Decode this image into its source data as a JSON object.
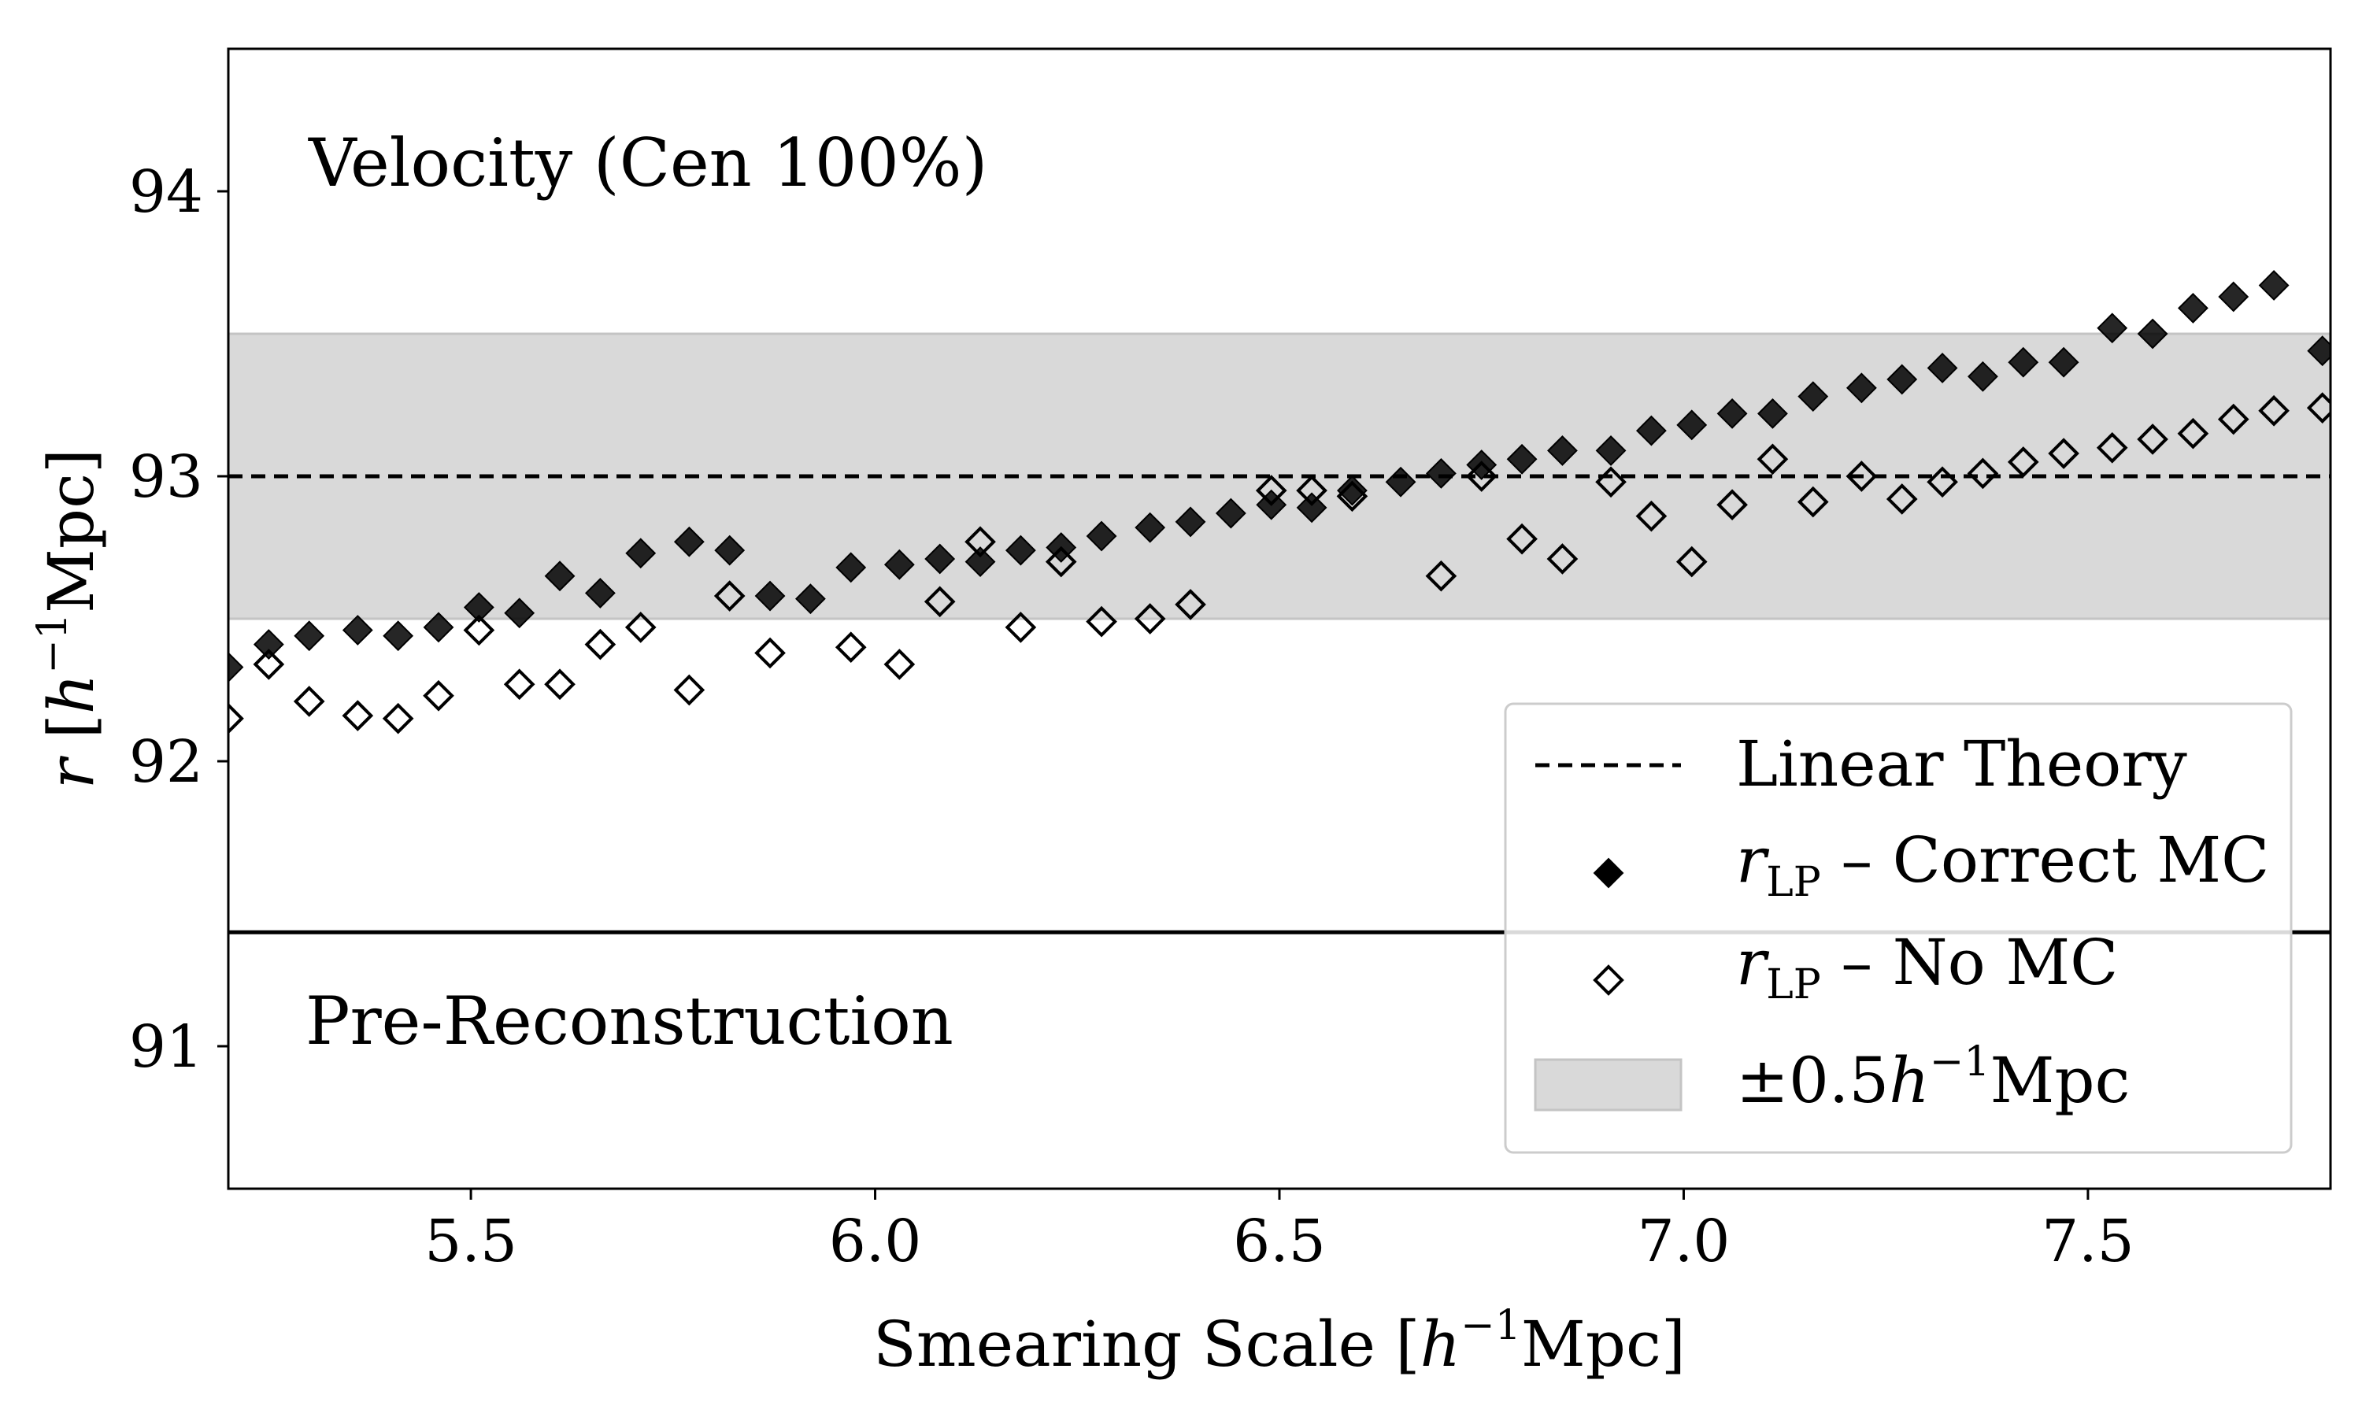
{
  "chart_data": {
    "type": "scatter",
    "xlabel": "Smearing Scale [h⁻¹Mpc]",
    "ylabel": "r [h⁻¹Mpc]",
    "xlim": [
      5.2,
      7.8
    ],
    "ylim": [
      90.5,
      94.5
    ],
    "x_ticks": [
      5.5,
      6.0,
      6.5,
      7.0,
      7.5
    ],
    "x_tick_labels": [
      "5.5",
      "6.0",
      "6.5",
      "7.0",
      "7.5"
    ],
    "y_ticks": [
      91,
      92,
      93,
      94
    ],
    "y_tick_labels": [
      "91",
      "92",
      "93",
      "94"
    ],
    "annotations": {
      "top": "Velocity (Cen 100%)",
      "bottom": "Pre-Reconstruction"
    },
    "reference_lines": {
      "linear_theory": 93.0,
      "pre_reconstruction": 91.4
    },
    "band": {
      "center": 93.0,
      "half_width": 0.5
    },
    "legend": {
      "position": "lower-right",
      "linear_theory": "Linear Theory",
      "correct_mc_prefix": "r",
      "correct_mc_sub": "LP",
      "correct_mc_suffix": " – Correct MC",
      "no_mc_prefix": "r",
      "no_mc_sub": "LP",
      "no_mc_suffix": " – No MC",
      "band_prefix": "±0.5",
      "band_h": "h",
      "band_sup": "−1",
      "band_suffix": "Mpc"
    },
    "series": [
      {
        "name": "rLP – Correct MC",
        "marker": "filled-diamond",
        "x": [
          5.2,
          5.25,
          5.3,
          5.36,
          5.41,
          5.46,
          5.51,
          5.56,
          5.61,
          5.66,
          5.71,
          5.77,
          5.82,
          5.87,
          5.92,
          5.97,
          6.03,
          6.08,
          6.13,
          6.18,
          6.23,
          6.28,
          6.34,
          6.39,
          6.44,
          6.49,
          6.54,
          6.59,
          6.65,
          6.7,
          6.75,
          6.8,
          6.85,
          6.91,
          6.96,
          7.01,
          7.06,
          7.11,
          7.16,
          7.22,
          7.27,
          7.32,
          7.37,
          7.42,
          7.47,
          7.53,
          7.58,
          7.63,
          7.68,
          7.73,
          7.79
        ],
        "values": [
          92.33,
          92.41,
          92.44,
          92.46,
          92.44,
          92.47,
          92.54,
          92.52,
          92.65,
          92.59,
          92.73,
          92.77,
          92.74,
          92.58,
          92.57,
          92.68,
          92.69,
          92.71,
          92.7,
          92.74,
          92.75,
          92.79,
          92.82,
          92.84,
          92.87,
          92.9,
          92.89,
          92.95,
          92.98,
          93.01,
          93.04,
          93.06,
          93.09,
          93.09,
          93.16,
          93.18,
          93.22,
          93.22,
          93.28,
          93.31,
          93.34,
          93.38,
          93.35,
          93.4,
          93.4,
          93.52,
          93.5,
          93.59,
          93.63,
          93.67,
          93.44
        ]
      },
      {
        "name": "rLP – No MC",
        "marker": "open-diamond",
        "x": [
          5.2,
          5.25,
          5.3,
          5.36,
          5.41,
          5.46,
          5.51,
          5.56,
          5.61,
          5.66,
          5.71,
          5.77,
          5.82,
          5.87,
          5.97,
          6.03,
          6.08,
          6.13,
          6.18,
          6.23,
          6.28,
          6.34,
          6.39,
          6.49,
          6.54,
          6.59,
          6.7,
          6.75,
          6.8,
          6.85,
          6.91,
          6.96,
          7.01,
          7.06,
          7.11,
          7.16,
          7.22,
          7.27,
          7.32,
          7.37,
          7.42,
          7.47,
          7.53,
          7.58,
          7.63,
          7.68,
          7.73,
          7.79
        ],
        "values": [
          92.15,
          92.34,
          92.21,
          92.16,
          92.15,
          92.23,
          92.46,
          92.27,
          92.27,
          92.41,
          92.47,
          92.25,
          92.58,
          92.38,
          92.4,
          92.34,
          92.56,
          92.77,
          92.47,
          92.7,
          92.49,
          92.5,
          92.55,
          92.95,
          92.95,
          92.93,
          92.65,
          93.0,
          92.78,
          92.71,
          92.98,
          92.86,
          92.7,
          92.9,
          93.06,
          92.91,
          93.0,
          92.92,
          92.98,
          93.01,
          93.05,
          93.08,
          93.1,
          93.13,
          93.15,
          93.2,
          93.23,
          93.24
        ]
      }
    ]
  }
}
